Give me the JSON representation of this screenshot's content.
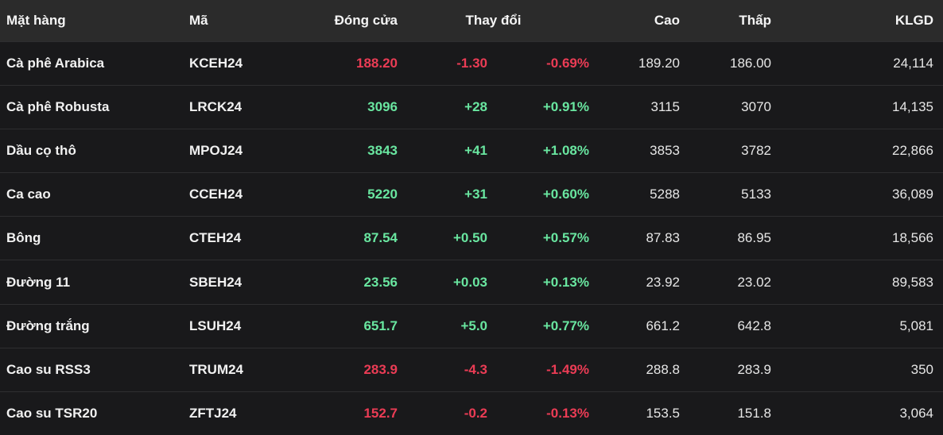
{
  "colors": {
    "up": "#69e6a0",
    "down": "#eb3c55",
    "header_bg": "#2b2b2b",
    "row_bg": "#19191b",
    "text": "#f1f1f1"
  },
  "table": {
    "header": {
      "name": "Mặt hàng",
      "code": "Mã",
      "close": "Đóng cửa",
      "change": "Thay đổi",
      "high": "Cao",
      "low": "Thấp",
      "volume": "KLGD"
    },
    "rows": [
      {
        "name": "Cà phê Arabica",
        "code": "KCEH24",
        "close": "188.20",
        "change": "-1.30",
        "change_pct": "-0.69%",
        "high": "189.20",
        "low": "186.00",
        "volume": "24,114",
        "dir": "down"
      },
      {
        "name": "Cà phê Robusta",
        "code": "LRCK24",
        "close": "3096",
        "change": "+28",
        "change_pct": "+0.91%",
        "high": "3115",
        "low": "3070",
        "volume": "14,135",
        "dir": "up"
      },
      {
        "name": "Dầu cọ thô",
        "code": "MPOJ24",
        "close": "3843",
        "change": "+41",
        "change_pct": "+1.08%",
        "high": "3853",
        "low": "3782",
        "volume": "22,866",
        "dir": "up"
      },
      {
        "name": "Ca cao",
        "code": "CCEH24",
        "close": "5220",
        "change": "+31",
        "change_pct": "+0.60%",
        "high": "5288",
        "low": "5133",
        "volume": "36,089",
        "dir": "up"
      },
      {
        "name": "Bông",
        "code": "CTEH24",
        "close": "87.54",
        "change": "+0.50",
        "change_pct": "+0.57%",
        "high": "87.83",
        "low": "86.95",
        "volume": "18,566",
        "dir": "up"
      },
      {
        "name": "Đường 11",
        "code": "SBEH24",
        "close": "23.56",
        "change": "+0.03",
        "change_pct": "+0.13%",
        "high": "23.92",
        "low": "23.02",
        "volume": "89,583",
        "dir": "up"
      },
      {
        "name": "Đường trắng",
        "code": "LSUH24",
        "close": "651.7",
        "change": "+5.0",
        "change_pct": "+0.77%",
        "high": "661.2",
        "low": "642.8",
        "volume": "5,081",
        "dir": "up"
      },
      {
        "name": "Cao su RSS3",
        "code": "TRUM24",
        "close": "283.9",
        "change": "-4.3",
        "change_pct": "-1.49%",
        "high": "288.8",
        "low": "283.9",
        "volume": "350",
        "dir": "down"
      },
      {
        "name": "Cao su TSR20",
        "code": "ZFTJ24",
        "close": "152.7",
        "change": "-0.2",
        "change_pct": "-0.13%",
        "high": "153.5",
        "low": "151.8",
        "volume": "3,064",
        "dir": "down"
      }
    ]
  }
}
